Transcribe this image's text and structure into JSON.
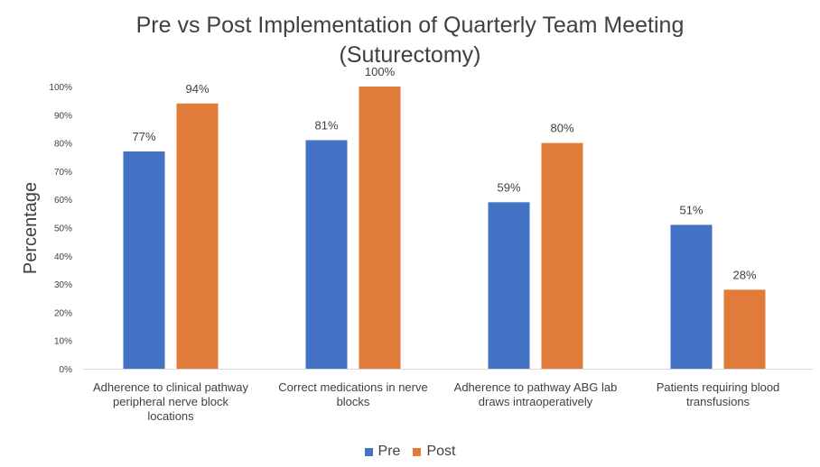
{
  "chart_data": {
    "type": "bar",
    "title": "Pre vs Post Implementation of Quarterly Team Meeting",
    "subtitle": "(Suturectomy)",
    "xlabel": "",
    "ylabel": "Percentage",
    "ylim": [
      0,
      100
    ],
    "yticks": [
      "0%",
      "10%",
      "20%",
      "30%",
      "40%",
      "50%",
      "60%",
      "70%",
      "80%",
      "90%",
      "100%"
    ],
    "categories": [
      [
        "Adherence to clinical pathway",
        "peripheral nerve block",
        "locations"
      ],
      [
        "Correct medications in nerve",
        "blocks"
      ],
      [
        "Adherence to pathway ABG lab",
        "draws intraoperatively"
      ],
      [
        "Patients requiring blood",
        "transfusions"
      ]
    ],
    "series": [
      {
        "name": "Pre",
        "color": "#4472c4",
        "values": [
          77,
          81,
          59,
          51
        ],
        "labels": [
          "77%",
          "81%",
          "59%",
          "51%"
        ]
      },
      {
        "name": "Post",
        "color": "#e07b39",
        "values": [
          94,
          100,
          80,
          28
        ],
        "labels": [
          "94%",
          "100%",
          "80%",
          "28%"
        ]
      }
    ],
    "grid": false,
    "legend_position": "bottom"
  }
}
